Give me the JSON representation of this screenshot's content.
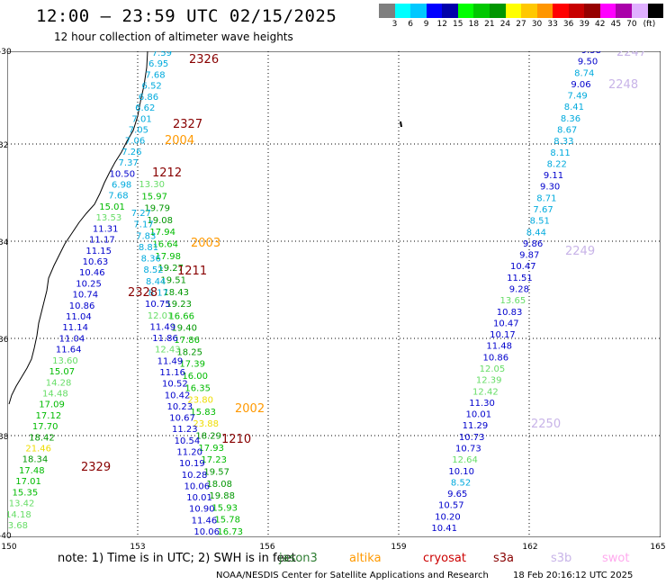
{
  "title": "12:00 – 23:59 UTC 02/15/2025",
  "subtitle": "12 hour collection of altimeter wave heights",
  "color_scale": {
    "colors": [
      "#7f7f7f",
      "#00ffff",
      "#00c8ff",
      "#0000ff",
      "#0000aa",
      "#00ff00",
      "#00c800",
      "#009600",
      "#ffff00",
      "#ffc800",
      "#ff9600",
      "#ff0000",
      "#c80000",
      "#960000",
      "#ff00ff",
      "#aa00aa",
      "#e0b0ff",
      "#000000"
    ],
    "labels": [
      "3",
      "6",
      "9",
      "12",
      "15",
      "18",
      "21",
      "24",
      "27",
      "30",
      "33",
      "36",
      "39",
      "42",
      "45",
      "70",
      "(ft)"
    ]
  },
  "axes": {
    "lat_labels": [
      "-30",
      "32",
      "34",
      "36",
      "38",
      "-40"
    ],
    "lon_labels": [
      "150",
      "153",
      "156",
      "159",
      "162",
      "165"
    ]
  },
  "note": "note: 1) Time is in UTC; 2) SWH is in feet",
  "missions": [
    {
      "name": "jason3",
      "color": "#2e7d32"
    },
    {
      "name": "altika",
      "color": "#ff9900"
    },
    {
      "name": "cryosat",
      "color": "#cc0000"
    },
    {
      "name": "s3a",
      "color": "#880000"
    },
    {
      "name": "s3b",
      "color": "#c8b4e8"
    },
    {
      "name": "swot",
      "color": "#ffaaee"
    }
  ],
  "credit": "NOAA/NESDIS Center for Satellite Applications and Research",
  "timestamp": "18 Feb 20:16:12 UTC 2025",
  "pass_labels": [
    {
      "text": "2326",
      "color": "#880000"
    },
    {
      "text": "2327",
      "color": "#880000"
    },
    {
      "text": "2004",
      "color": "#ff9900"
    },
    {
      "text": "1212",
      "color": "#880000"
    },
    {
      "text": "2003",
      "color": "#ff9900"
    },
    {
      "text": "1211",
      "color": "#880000"
    },
    {
      "text": "2328",
      "color": "#880000"
    },
    {
      "text": "2002",
      "color": "#ff9900"
    },
    {
      "text": "1210",
      "color": "#880000"
    },
    {
      "text": "2329",
      "color": "#880000"
    },
    {
      "text": "2247",
      "color": "#c8b4e8"
    },
    {
      "text": "2248",
      "color": "#c8b4e8"
    },
    {
      "text": "2249",
      "color": "#c8b4e8"
    },
    {
      "text": "2250",
      "color": "#c8b4e8"
    }
  ],
  "tracks": [
    {
      "name": "track-a",
      "values": [
        "7.59",
        "6.95",
        "7.68",
        "6.52",
        "6.86",
        "6.62",
        "7.01",
        "7.05",
        "7.06",
        "7.26",
        "7.37",
        "10.50",
        "6.98",
        "7.68",
        "15.01",
        "13.53",
        "11.31",
        "11.17",
        "11.15",
        "10.63",
        "10.46",
        "10.25",
        "10.74",
        "10.86",
        "11.04",
        "11.14",
        "11.04",
        "11.64",
        "13.60",
        "15.07",
        "14.28",
        "14.48",
        "17.09",
        "17.12",
        "17.70",
        "18.42",
        "21.46",
        "18.34",
        "17.48",
        "17.01",
        "15.35",
        "13.42",
        "14.18",
        "13.68"
      ]
    },
    {
      "name": "track-b",
      "values": [
        "13.30",
        "15.97",
        "19.79",
        "19.08",
        "17.94",
        "16.64",
        "17.98",
        "19.27",
        "19.51",
        "18.43",
        "19.23",
        "16.66",
        "19.40",
        "17.86",
        "18.25",
        "17.39",
        "16.00",
        "16.35",
        "23.80",
        "15.83",
        "23.88",
        "18.29",
        "17.93",
        "17.23",
        "19.57",
        "18.08",
        "19.88",
        "15.93",
        "15.78",
        "16.73"
      ]
    },
    {
      "name": "track-c",
      "values": [
        "7.27",
        "7.17",
        "7.83",
        "8.81",
        "8.36",
        "8.52",
        "8.44",
        "8.17",
        "10.75",
        "12.01",
        "11.49",
        "11.86",
        "12.43",
        "11.49",
        "11.16",
        "10.52",
        "10.42",
        "10.23",
        "10.67",
        "11.23",
        "10.54",
        "11.20",
        "10.19",
        "10.28",
        "10.06",
        "10.01",
        "10.90",
        "11.46",
        "10.06"
      ]
    },
    {
      "name": "track-d",
      "values": [
        "9.58",
        "9.50",
        "8.74",
        "9.06",
        "7.49",
        "8.41",
        "8.36",
        "8.67",
        "8.33",
        "8.11",
        "8.22",
        "9.11",
        "9.30",
        "8.71",
        "7.67",
        "8.51",
        "8.44",
        "9.86",
        "9.87",
        "10.47",
        "11.51",
        "9.28",
        "13.65",
        "10.83",
        "10.47",
        "10.17",
        "11.48",
        "10.86",
        "12.05",
        "12.39",
        "12.42",
        "11.30",
        "10.01",
        "11.29",
        "10.73",
        "10.73",
        "12.64",
        "10.10",
        "8.52",
        "9.65",
        "10.57",
        "10.20",
        "10.41"
      ]
    }
  ]
}
